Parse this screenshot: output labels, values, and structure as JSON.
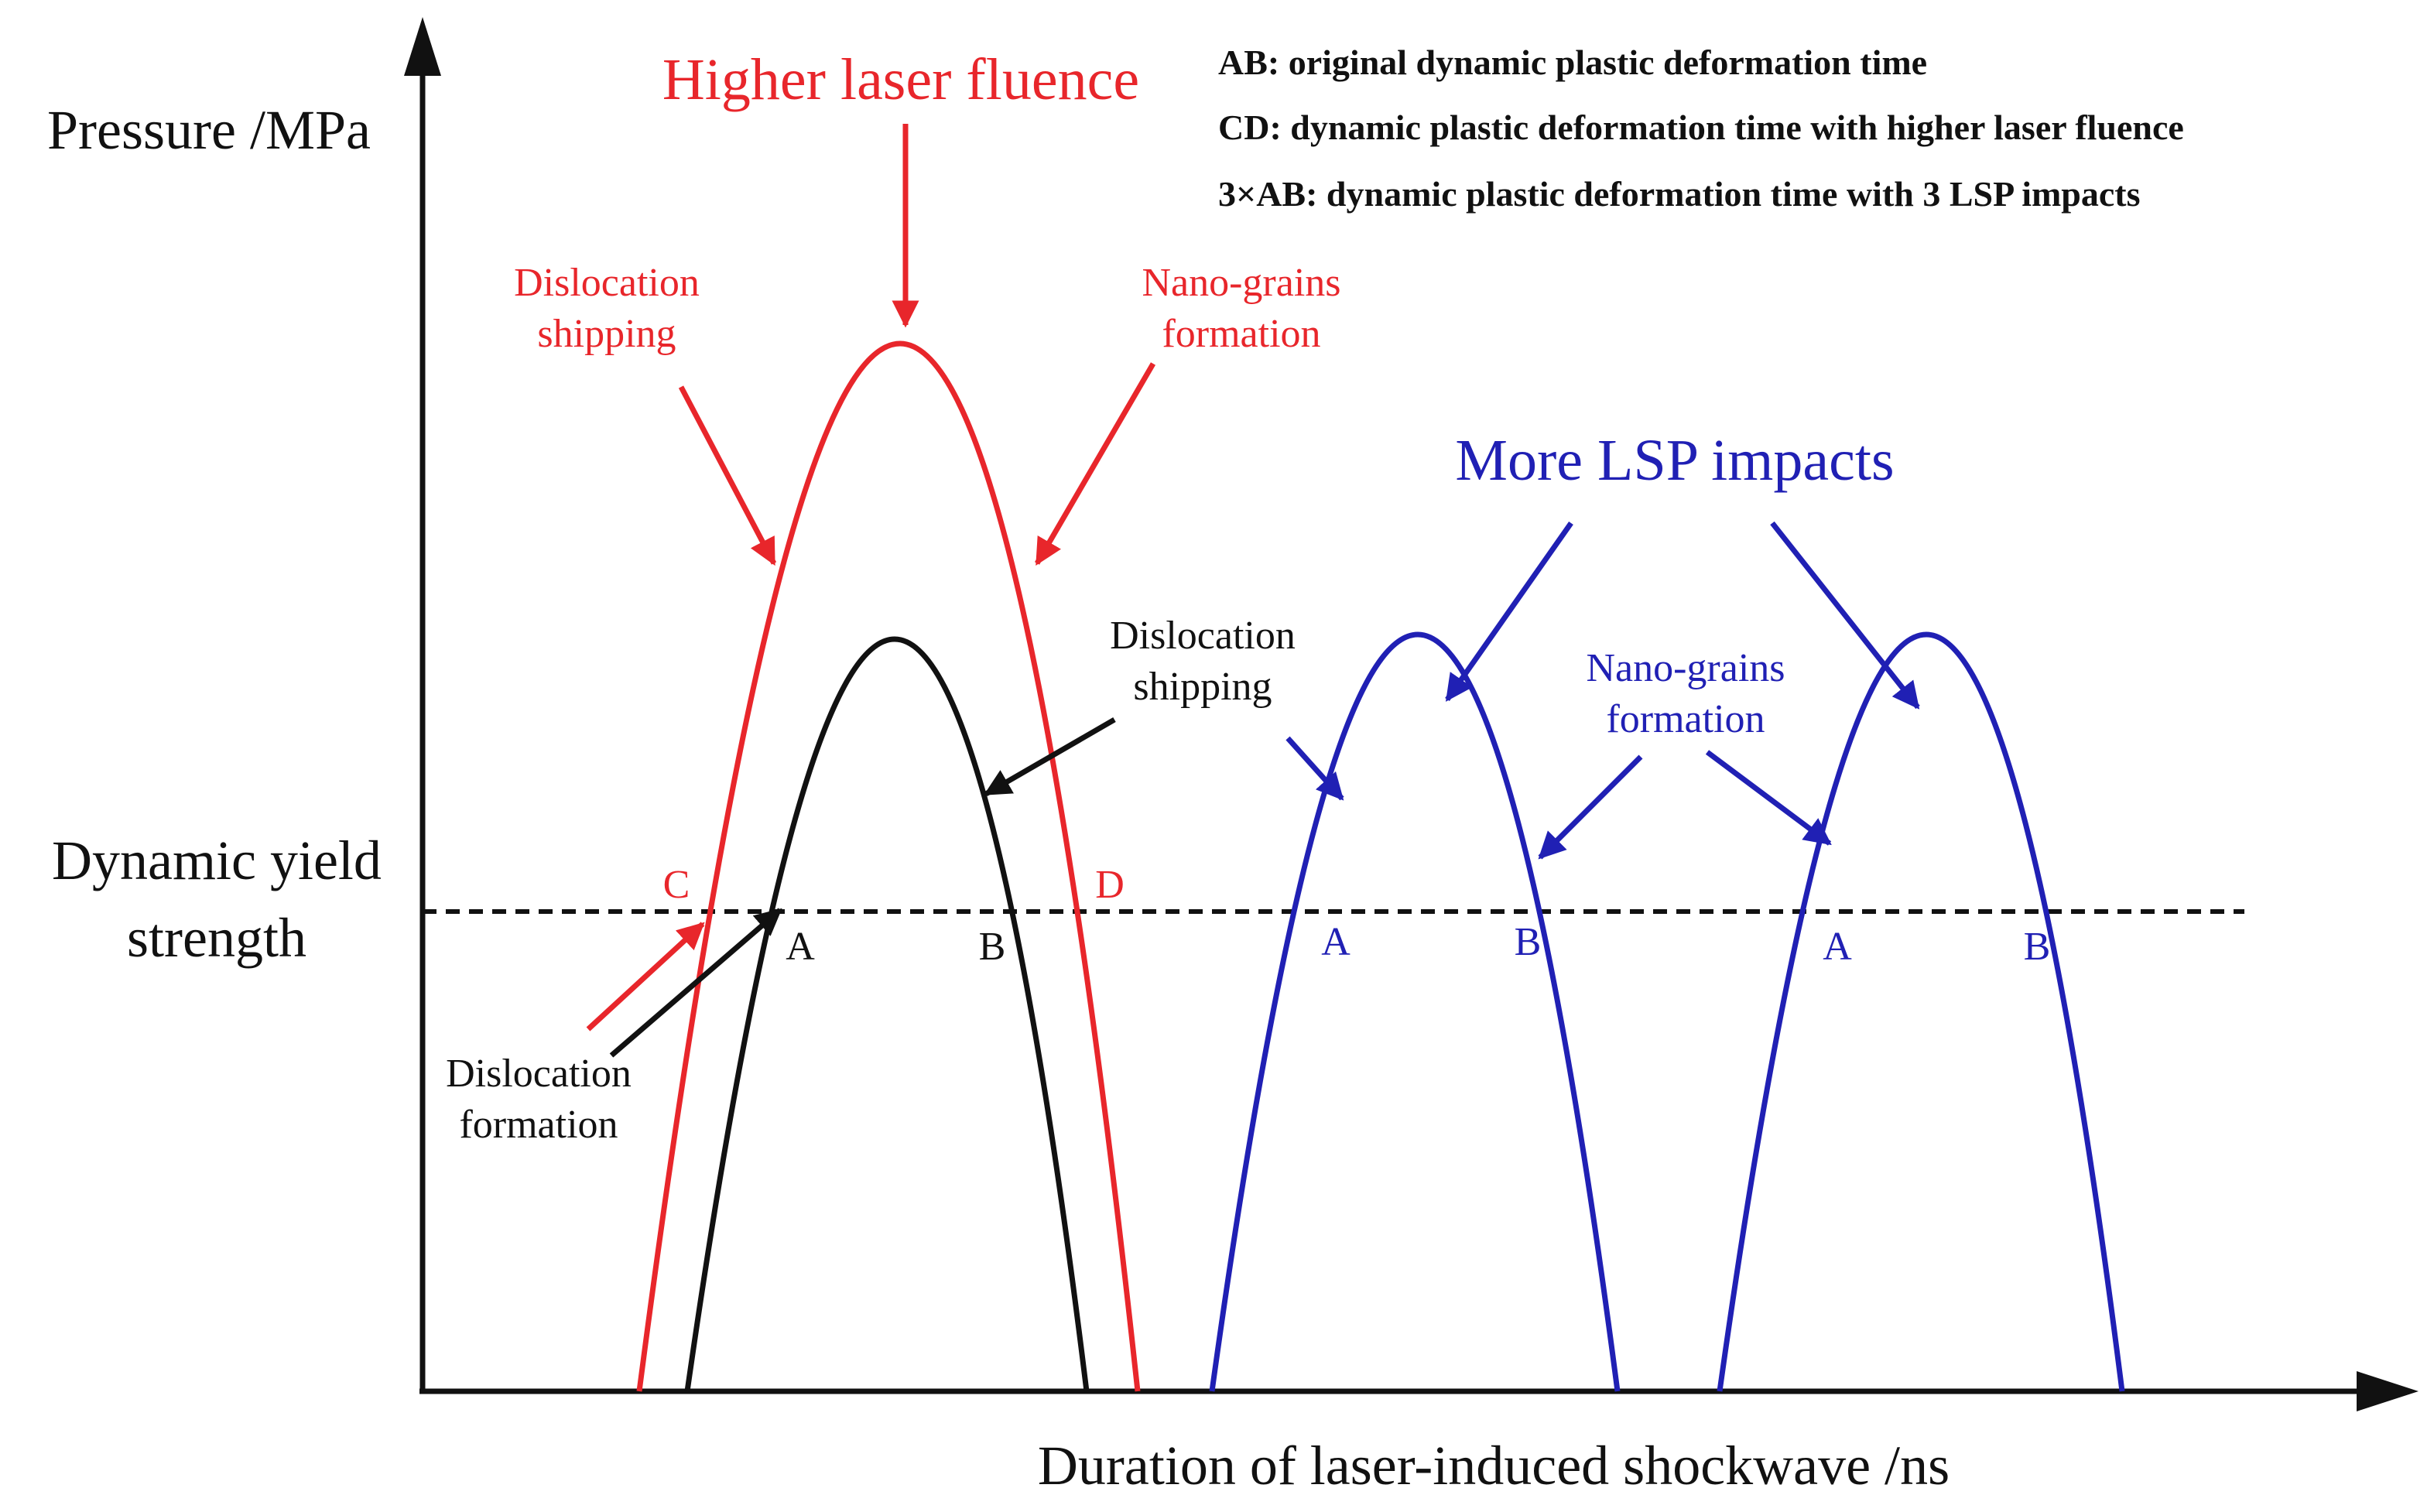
{
  "colors": {
    "red": "#e8262b",
    "black": "#111111",
    "blue": "#2020b4",
    "background": "#ffffff"
  },
  "axes": {
    "y_label": "Pressure /MPa",
    "x_label": "Duration  of laser-induced shockwave /ns",
    "threshold_label_line1": "Dynamic yield",
    "threshold_label_line2": "strength"
  },
  "legend": {
    "line1": "AB: original dynamic plastic deformation time",
    "line2": "CD: dynamic plastic deformation time with higher laser fluence",
    "line3": "3×AB: dynamic plastic deformation time with 3 LSP impacts"
  },
  "annotations": {
    "higher_laser_fluence": "Higher laser fluence",
    "more_lsp_impacts": "More LSP impacts",
    "red_dislocation_shipping_1": "Dislocation",
    "red_dislocation_shipping_2": "shipping",
    "red_nano_grains_1": "Nano-grains",
    "red_nano_grains_2": "formation",
    "black_dislocation_shipping_1": "Dislocation",
    "black_dislocation_shipping_2": "shipping",
    "black_dislocation_formation_1": "Dislocation",
    "black_dislocation_formation_2": "formation",
    "blue_nano_grains_1": "Nano-grains",
    "blue_nano_grains_2": "formation"
  },
  "points": {
    "red_c": "C",
    "red_d": "D",
    "black_a": "A",
    "black_b": "B",
    "blue1_a": "A",
    "blue1_b": "B",
    "blue2_a": "A",
    "blue2_b": "B"
  },
  "curves": [
    {
      "id": "red-higher-fluence-curve",
      "color": "red"
    },
    {
      "id": "black-original-curve",
      "color": "black"
    },
    {
      "id": "blue-impact-1-curve",
      "color": "blue"
    },
    {
      "id": "blue-impact-2-curve",
      "color": "blue"
    }
  ]
}
